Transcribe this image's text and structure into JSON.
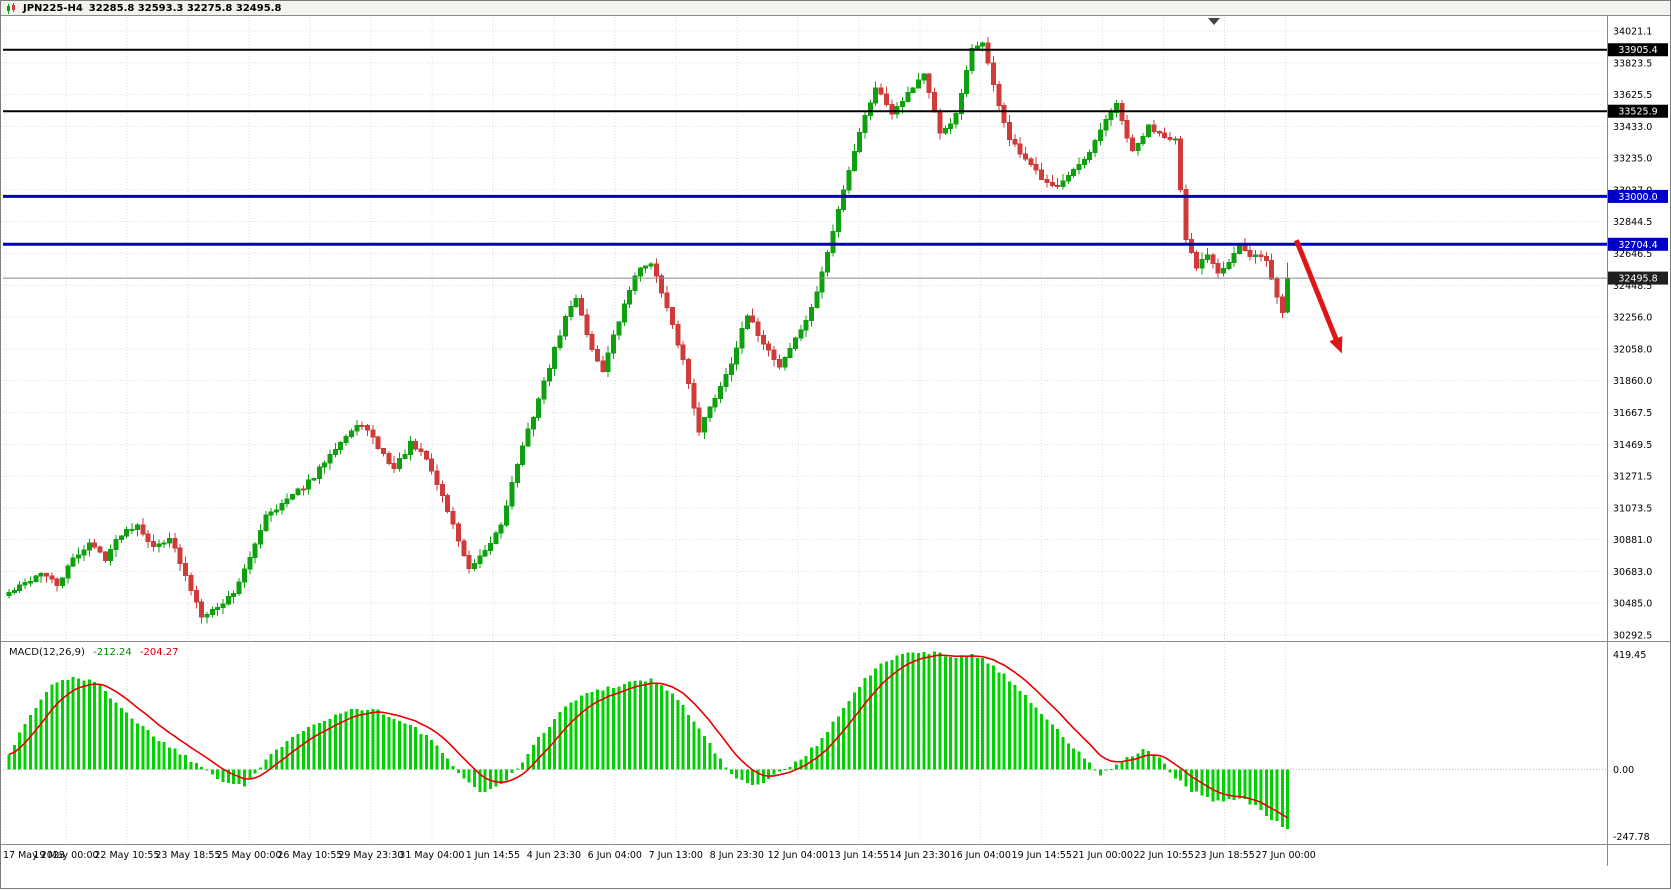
{
  "titlebar": {
    "symbol": "JPN225-H4",
    "ohlc": "32285.8 32593.3 32275.8 32495.8"
  },
  "macd": {
    "title": "MACD(12,26,9)",
    "value_macd": "-212.24",
    "value_signal": "-204.27",
    "axis_labels": [
      "419.45",
      "0.00",
      "-247.78"
    ]
  },
  "colors": {
    "bull": "#0fa00f",
    "bear": "#cf3a3a",
    "macd_hist": "#00d000",
    "macd_signal": "#e80000",
    "hline_black": "#000000",
    "hline_blue": "#0000c8",
    "price_line": "#8a8a8a",
    "price_badge_bg": "#1f1f1f",
    "arrow": "#e01616",
    "grid": "#dcdcdc",
    "frame": "#8a8a8a",
    "axis_text": "#000000"
  },
  "chart_data": [
    {
      "type": "candlestick",
      "title": "JPN225 H4 candlestick chart",
      "symbol": "JPN225",
      "timeframe": "H4",
      "bars": 240,
      "current_ohlc": {
        "open": 32285.8,
        "high": 32593.3,
        "low": 32275.8,
        "close": 32495.8
      },
      "ylim": [
        30292.5,
        34021.1
      ],
      "y_tick_labels": [
        "34021.1",
        "33823.5",
        "33625.5",
        "33433.0",
        "33235.0",
        "33037.0",
        "32844.5",
        "32646.5",
        "32448.5",
        "32256.0",
        "32058.0",
        "31860.0",
        "31667.5",
        "31469.5",
        "31271.5",
        "31073.5",
        "30881.0",
        "30683.0",
        "30485.0",
        "30292.5"
      ],
      "x_tick_labels": [
        "17 May 2023",
        "19 May 00:00",
        "22 May 10:55",
        "23 May 18:55",
        "25 May 00:00",
        "26 May 10:55",
        "29 May 23:30",
        "31 May 04:00",
        "1 Jun 14:55",
        "4 Jun 23:30",
        "6 Jun 04:00",
        "7 Jun 13:00",
        "8 Jun 23:30",
        "12 Jun 04:00",
        "13 Jun 14:55",
        "14 Jun 23:30",
        "16 Jun 04:00",
        "19 Jun 14:55",
        "21 Jun 00:00",
        "22 Jun 10:55",
        "23 Jun 18:55",
        "27 Jun 00:00"
      ],
      "price_keyframes": [
        [
          0,
          30550
        ],
        [
          3,
          30610
        ],
        [
          6,
          30680
        ],
        [
          9,
          30600
        ],
        [
          12,
          30760
        ],
        [
          15,
          30860
        ],
        [
          18,
          30770
        ],
        [
          21,
          30920
        ],
        [
          24,
          30980
        ],
        [
          27,
          30830
        ],
        [
          30,
          30900
        ],
        [
          33,
          30650
        ],
        [
          36,
          30420
        ],
        [
          39,
          30460
        ],
        [
          42,
          30560
        ],
        [
          45,
          30760
        ],
        [
          48,
          31040
        ],
        [
          51,
          31100
        ],
        [
          54,
          31180
        ],
        [
          57,
          31260
        ],
        [
          60,
          31420
        ],
        [
          63,
          31520
        ],
        [
          66,
          31600
        ],
        [
          69,
          31450
        ],
        [
          72,
          31320
        ],
        [
          75,
          31470
        ],
        [
          78,
          31380
        ],
        [
          81,
          31150
        ],
        [
          84,
          30880
        ],
        [
          86,
          30690
        ],
        [
          89,
          30800
        ],
        [
          92,
          30980
        ],
        [
          95,
          31350
        ],
        [
          98,
          31650
        ],
        [
          101,
          31950
        ],
        [
          104,
          32250
        ],
        [
          106,
          32380
        ],
        [
          109,
          32050
        ],
        [
          111,
          31930
        ],
        [
          114,
          32230
        ],
        [
          117,
          32520
        ],
        [
          120,
          32600
        ],
        [
          123,
          32300
        ],
        [
          126,
          31990
        ],
        [
          129,
          31560
        ],
        [
          132,
          31760
        ],
        [
          135,
          31980
        ],
        [
          138,
          32260
        ],
        [
          141,
          32100
        ],
        [
          144,
          31950
        ],
        [
          147,
          32120
        ],
        [
          150,
          32300
        ],
        [
          153,
          32650
        ],
        [
          156,
          33050
        ],
        [
          159,
          33400
        ],
        [
          162,
          33680
        ],
        [
          165,
          33520
        ],
        [
          168,
          33640
        ],
        [
          171,
          33760
        ],
        [
          174,
          33380
        ],
        [
          177,
          33500
        ],
        [
          180,
          33900
        ],
        [
          182,
          33960
        ],
        [
          184,
          33680
        ],
        [
          187,
          33350
        ],
        [
          190,
          33220
        ],
        [
          193,
          33120
        ],
        [
          196,
          33060
        ],
        [
          199,
          33150
        ],
        [
          202,
          33260
        ],
        [
          205,
          33480
        ],
        [
          207,
          33560
        ],
        [
          210,
          33270
        ],
        [
          213,
          33430
        ],
        [
          216,
          33380
        ],
        [
          218,
          33350
        ],
        [
          220,
          32720
        ],
        [
          222,
          32560
        ],
        [
          224,
          32650
        ],
        [
          226,
          32540
        ],
        [
          228,
          32600
        ],
        [
          230,
          32700
        ],
        [
          232,
          32620
        ],
        [
          234,
          32640
        ],
        [
          235,
          32600
        ],
        [
          237,
          32380
        ],
        [
          238,
          32285
        ],
        [
          239,
          32495.8
        ]
      ],
      "levels": [
        {
          "label": "33905.4",
          "price": 33905.4,
          "color": "black"
        },
        {
          "label": "33525.9",
          "price": 33525.9,
          "color": "black"
        },
        {
          "label": "33000.0",
          "price": 33000.0,
          "color": "blue"
        },
        {
          "label": "32704.4",
          "price": 32704.4,
          "color": "blue"
        },
        {
          "label": "32495.8",
          "price": 32495.8,
          "color": "gray",
          "role": "current-price"
        }
      ],
      "annotation_arrow": {
        "from_bar": 241,
        "from_price": 32730,
        "to_bar": 249.5,
        "to_price": 32030
      }
    },
    {
      "type": "bar",
      "title": "MACD(12,26,9)",
      "bars": 240,
      "ylim": [
        -247.78,
        419.45
      ],
      "axis_ticks": [
        419.45,
        0,
        -247.78
      ],
      "last_values": {
        "macd": -212.24,
        "signal": -204.27
      },
      "signal_method": "EMA9",
      "macd_keyframes": [
        [
          0,
          60
        ],
        [
          4,
          200
        ],
        [
          8,
          310
        ],
        [
          12,
          340
        ],
        [
          16,
          320
        ],
        [
          20,
          250
        ],
        [
          24,
          170
        ],
        [
          28,
          110
        ],
        [
          32,
          60
        ],
        [
          36,
          10
        ],
        [
          40,
          -40
        ],
        [
          44,
          -60
        ],
        [
          48,
          30
        ],
        [
          52,
          110
        ],
        [
          56,
          160
        ],
        [
          60,
          190
        ],
        [
          64,
          220
        ],
        [
          68,
          225
        ],
        [
          72,
          185
        ],
        [
          76,
          150
        ],
        [
          80,
          90
        ],
        [
          84,
          -20
        ],
        [
          88,
          -80
        ],
        [
          92,
          -60
        ],
        [
          96,
          30
        ],
        [
          100,
          140
        ],
        [
          104,
          230
        ],
        [
          108,
          280
        ],
        [
          112,
          300
        ],
        [
          116,
          320
        ],
        [
          120,
          330
        ],
        [
          124,
          280
        ],
        [
          128,
          180
        ],
        [
          132,
          60
        ],
        [
          136,
          -40
        ],
        [
          140,
          -55
        ],
        [
          144,
          -10
        ],
        [
          148,
          40
        ],
        [
          152,
          110
        ],
        [
          156,
          230
        ],
        [
          160,
          330
        ],
        [
          164,
          400
        ],
        [
          168,
          425
        ],
        [
          172,
          430
        ],
        [
          176,
          415
        ],
        [
          180,
          420
        ],
        [
          184,
          380
        ],
        [
          188,
          310
        ],
        [
          192,
          230
        ],
        [
          196,
          140
        ],
        [
          200,
          60
        ],
        [
          204,
          -20
        ],
        [
          208,
          30
        ],
        [
          212,
          70
        ],
        [
          215,
          40
        ],
        [
          218,
          -30
        ],
        [
          221,
          -80
        ],
        [
          224,
          -105
        ],
        [
          227,
          -120
        ],
        [
          230,
          -105
        ],
        [
          233,
          -135
        ],
        [
          236,
          -185
        ],
        [
          239,
          -212.24
        ]
      ]
    }
  ]
}
